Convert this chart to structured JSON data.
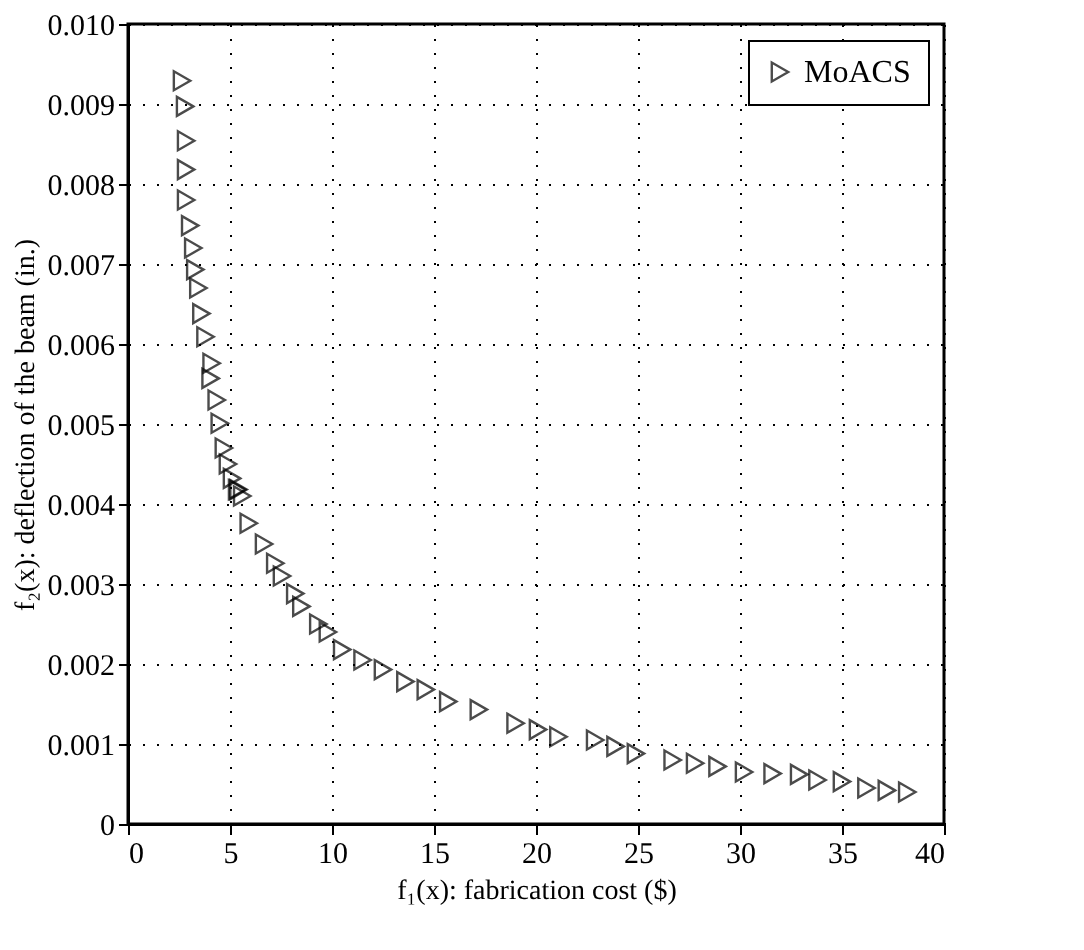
{
  "chart_data": {
    "type": "scatter",
    "xlabel": "f₁(x): fabrication cost ($)",
    "ylabel": "f₂(x): deflection of the beam (in.)",
    "xlim": [
      0,
      40
    ],
    "xticks": [
      0,
      5,
      10,
      15,
      20,
      25,
      30,
      35,
      40
    ],
    "ylim": [
      0,
      0.01
    ],
    "yticks": [
      0,
      0.001,
      0.002,
      0.003,
      0.004,
      0.005,
      0.006,
      0.007,
      0.008,
      0.009,
      {
        "value": 0.01,
        "label": "0.010"
      }
    ],
    "grid": true,
    "legend": "top right",
    "marker": "triangle",
    "series": [
      {
        "name": "MoACS",
        "color": "#000000",
        "x": [
          2.65,
          2.8,
          2.85,
          2.85,
          2.85,
          3.05,
          3.2,
          3.3,
          3.45,
          3.6,
          3.8,
          4.1,
          4.05,
          4.35,
          4.5,
          4.7,
          4.9,
          5.1,
          5.35,
          5.42,
          5.6,
          5.92,
          6.67,
          7.22,
          7.55,
          8.2,
          8.5,
          9.33,
          9.8,
          10.5,
          11.5,
          12.5,
          13.6,
          14.6,
          15.7,
          17.2,
          19.0,
          20.1,
          21.1,
          22.9,
          23.9,
          24.9,
          26.7,
          27.8,
          28.9,
          30.2,
          31.6,
          32.9,
          33.8,
          35.0,
          36.2,
          37.2,
          38.2
        ],
        "values": [
          0.00929,
          0.00897,
          0.00854,
          0.00818,
          0.0078,
          0.00748,
          0.0072,
          0.00693,
          0.0067,
          0.00638,
          0.00609,
          0.00576,
          0.00557,
          0.0053,
          0.00501,
          0.0047,
          0.0045,
          0.00432,
          0.00418,
          0.00418,
          0.0041,
          0.00376,
          0.0035,
          0.00326,
          0.0031,
          0.00288,
          0.00272,
          0.0025,
          0.0024,
          0.00218,
          0.00205,
          0.00193,
          0.00178,
          0.00168,
          0.00153,
          0.00143,
          0.00126,
          0.00118,
          0.00109,
          0.00105,
          0.00097,
          0.00088,
          0.0008,
          0.00076,
          0.00072,
          0.00065,
          0.00063,
          0.00062,
          0.00055,
          0.00053,
          0.00045,
          0.00042,
          0.0004
        ]
      }
    ]
  }
}
